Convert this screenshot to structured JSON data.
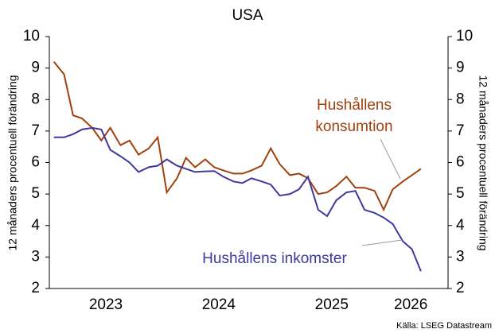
{
  "chart_data": {
    "type": "line",
    "title": "USA",
    "y_label": "12 månaders procentuell förändring",
    "y2_label": "12 månaders procentuell förändring",
    "source": "Källa: LSEG Datastream",
    "x": [
      2023.04,
      2023.13,
      2023.21,
      2023.29,
      2023.38,
      2023.46,
      2023.54,
      2023.63,
      2023.71,
      2023.79,
      2023.88,
      2023.96,
      2024.04,
      2024.13,
      2024.21,
      2024.29,
      2024.38,
      2024.46,
      2024.54,
      2024.63,
      2024.71,
      2024.79,
      2024.88,
      2024.96,
      2025.04,
      2025.13,
      2025.21,
      2025.29,
      2025.38,
      2025.46,
      2025.54,
      2025.63,
      2025.71,
      2025.79,
      2025.88,
      2025.96,
      2026.04,
      2026.13,
      2026.21,
      2026.29
    ],
    "series": [
      {
        "name": "Hushållens konsumtion",
        "color": "#a0410d",
        "values": [
          9.2,
          8.8,
          7.5,
          7.4,
          7.1,
          6.7,
          7.1,
          6.55,
          6.7,
          6.25,
          6.45,
          6.8,
          5.05,
          5.5,
          6.15,
          5.85,
          6.1,
          5.85,
          5.75,
          5.65,
          5.65,
          5.75,
          5.9,
          6.45,
          5.95,
          5.6,
          5.65,
          5.5,
          5.0,
          5.05,
          5.25,
          5.55,
          5.2,
          5.2,
          5.1,
          4.5,
          5.15,
          5.4,
          5.6,
          5.8
        ]
      },
      {
        "name": "Hushållens inkomster",
        "color": "#3d3a9c",
        "values": [
          6.8,
          6.8,
          6.9,
          7.05,
          7.1,
          7.05,
          6.4,
          6.2,
          6.0,
          5.7,
          5.85,
          5.9,
          6.1,
          5.9,
          5.8,
          5.7,
          5.72,
          5.73,
          5.55,
          5.4,
          5.35,
          5.5,
          5.4,
          5.3,
          4.95,
          5.0,
          5.15,
          5.55,
          4.5,
          4.3,
          4.8,
          5.05,
          5.1,
          4.5,
          4.4,
          4.25,
          4.05,
          3.5,
          3.25,
          2.55
        ]
      }
    ],
    "annotations": [
      {
        "lines": [
          "Hushållens",
          "konsumtion"
        ],
        "series": 0
      },
      {
        "lines": [
          "Hushållens inkomster"
        ],
        "series": 1
      }
    ],
    "xlim": [
      2023,
      2026.53
    ],
    "xticks": [
      {
        "value": 2023.5,
        "label": "2023"
      },
      {
        "value": 2024.5,
        "label": "2024"
      },
      {
        "value": 2025.5,
        "label": "2025"
      },
      {
        "value": 2026.2,
        "label": "2026"
      }
    ],
    "ylim": [
      2,
      10
    ],
    "yticks": [
      2,
      3,
      4,
      5,
      6,
      7,
      8,
      9,
      10
    ],
    "y2lim": [
      2,
      10
    ],
    "y2ticks": [
      2,
      3,
      4,
      5,
      6,
      7,
      8,
      9,
      10
    ],
    "grid": false
  }
}
